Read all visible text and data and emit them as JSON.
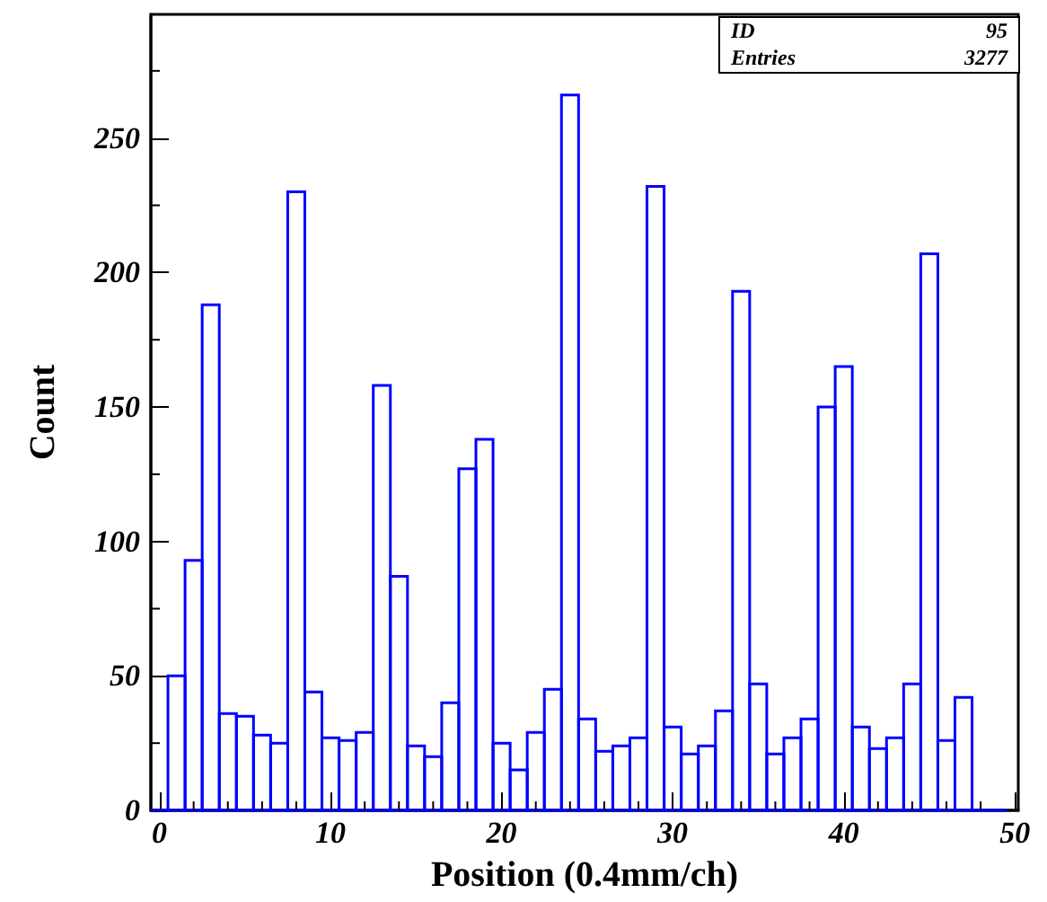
{
  "chart_data": {
    "type": "histogram",
    "xlabel": "Position (0.4mm/ch)",
    "ylabel": "Count",
    "bins": [
      -0.5,
      0.5,
      1.5,
      2.5,
      3.5,
      4.5,
      5.5,
      6.5,
      7.5,
      8.5,
      9.5,
      10.5,
      11.5,
      12.5,
      13.5,
      14.5,
      15.5,
      16.5,
      17.5,
      18.5,
      19.5,
      20.5,
      21.5,
      22.5,
      23.5,
      24.5,
      25.5,
      26.5,
      27.5,
      28.5,
      29.5,
      30.5,
      31.5,
      32.5,
      33.5,
      34.5,
      35.5,
      36.5,
      37.5,
      38.5,
      39.5,
      40.5,
      41.5,
      42.5,
      43.5,
      44.5,
      45.5,
      46.5,
      47.5,
      48.5,
      49.5
    ],
    "values": [
      0,
      50,
      93,
      188,
      36,
      35,
      28,
      25,
      230,
      44,
      27,
      26,
      29,
      158,
      87,
      24,
      20,
      40,
      127,
      138,
      25,
      15,
      29,
      45,
      266,
      34,
      22,
      24,
      27,
      232,
      31,
      21,
      24,
      37,
      193,
      47,
      21,
      27,
      34,
      150,
      165,
      31,
      23,
      27,
      47,
      207,
      26,
      42,
      0,
      0
    ],
    "color": "#0000ff",
    "xlim": [
      -0.5,
      50.2
    ],
    "xticks": [
      0,
      10,
      20,
      30,
      40,
      50
    ],
    "ylim": [
      0,
      296
    ],
    "yticks": [
      0,
      50,
      100,
      150,
      200,
      250
    ],
    "grid": false,
    "annotations": [
      "ID 95",
      "Entries 3277"
    ]
  }
}
